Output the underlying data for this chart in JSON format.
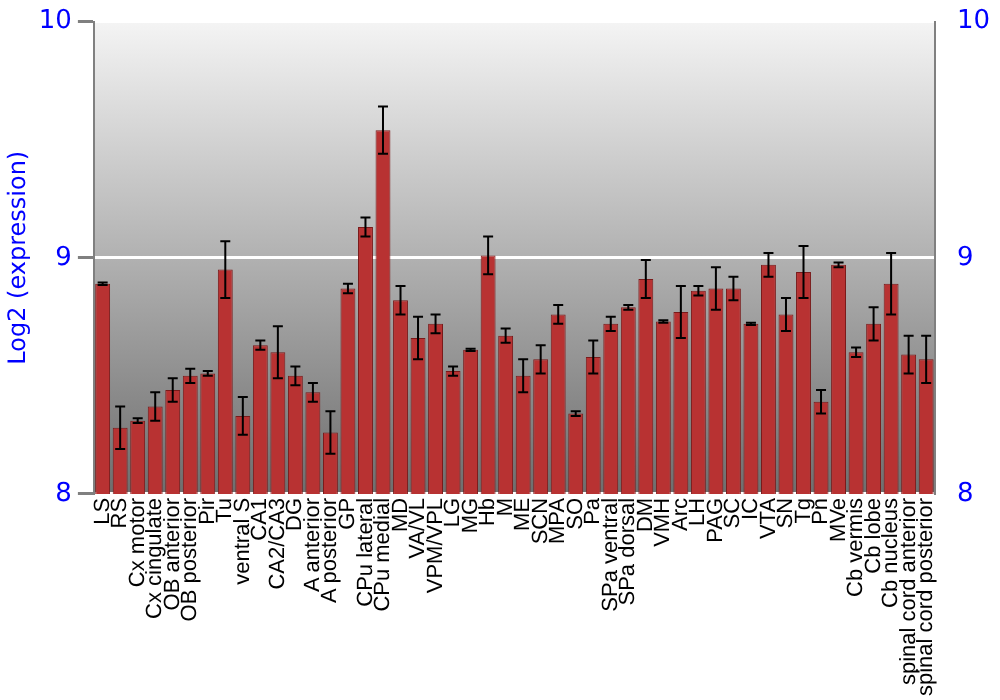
{
  "chart_data": {
    "type": "bar",
    "ylabel": "Log2 (expression)",
    "categories": [
      "LS",
      "RS",
      "Cx motor",
      "Cx cingulate",
      "OB anterior",
      "OB posterior",
      "Pir",
      "Tu",
      "ventral S",
      "CA1",
      "CA2/CA3",
      "DG",
      "A anterior",
      "A posterior",
      "GP",
      "CPu lateral",
      "CPu medial",
      "MD",
      "VA/VL",
      "VPM/VPL",
      "LG",
      "MG",
      "Hb",
      "M",
      "ME",
      "SCN",
      "MPA",
      "SO",
      "Pa",
      "SPa ventral",
      "SPa dorsal",
      "DM",
      "VMH",
      "Arc",
      "LH",
      "PAG",
      "SC",
      "IC",
      "VTA",
      "SN",
      "Tg",
      "Pn",
      "MVe",
      "Cb vermis",
      "Cb lobe",
      "Cb nucleus",
      "spinal cord anterior",
      "spinal cord posterior"
    ],
    "values": [
      8.89,
      8.28,
      8.31,
      8.37,
      8.44,
      8.5,
      8.51,
      8.95,
      8.33,
      8.63,
      8.6,
      8.5,
      8.43,
      8.26,
      8.87,
      9.13,
      9.54,
      8.82,
      8.66,
      8.72,
      8.52,
      8.61,
      9.01,
      8.67,
      8.5,
      8.57,
      8.76,
      8.34,
      8.58,
      8.72,
      8.79,
      8.91,
      8.73,
      8.77,
      8.86,
      8.87,
      8.87,
      8.72,
      8.97,
      8.76,
      8.94,
      8.39,
      8.97,
      8.6,
      8.72,
      8.89,
      8.59,
      8.57
    ],
    "errors": [
      0.005,
      0.09,
      0.01,
      0.06,
      0.05,
      0.03,
      0.01,
      0.12,
      0.08,
      0.02,
      0.11,
      0.04,
      0.04,
      0.09,
      0.02,
      0.04,
      0.1,
      0.06,
      0.09,
      0.04,
      0.02,
      0.005,
      0.08,
      0.03,
      0.07,
      0.06,
      0.04,
      0.01,
      0.07,
      0.03,
      0.01,
      0.08,
      0.005,
      0.11,
      0.02,
      0.09,
      0.05,
      0.005,
      0.05,
      0.07,
      0.11,
      0.05,
      0.01,
      0.02,
      0.07,
      0.13,
      0.08,
      0.1
    ],
    "color": "#b83232",
    "ylim": [
      8,
      10
    ],
    "yticks": [
      8,
      9,
      10
    ],
    "y2lim": [
      8,
      10
    ],
    "y2ticks": [
      8,
      9,
      10
    ],
    "grid": "y",
    "legend": false
  }
}
